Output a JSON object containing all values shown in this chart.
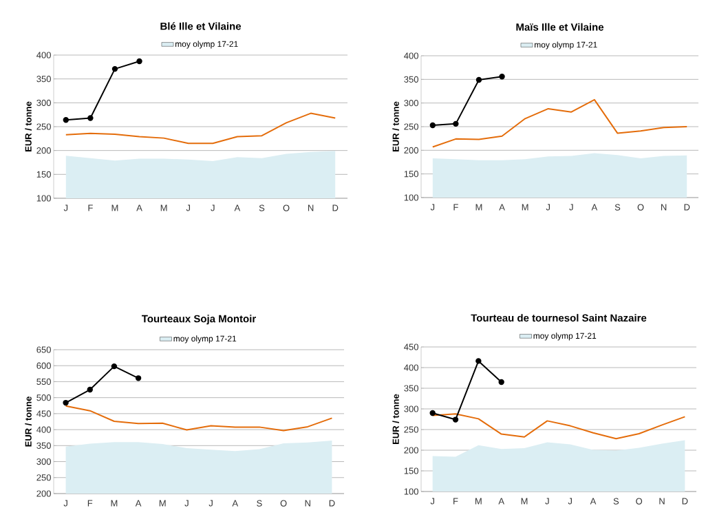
{
  "chart_data": [
    {
      "type": "line",
      "title": "**Blé Ille et Vilaine**",
      "ylabel": "EUR / tonne",
      "categories": [
        "J",
        "F",
        "M",
        "A",
        "M",
        "J",
        "J",
        "A",
        "S",
        "O",
        "N",
        "D"
      ],
      "ylim": [
        100,
        400
      ],
      "yticks": [
        100,
        150,
        200,
        250,
        300,
        350,
        400
      ],
      "grid": "y",
      "legend": "top",
      "series": [
        {
          "name": "moy olymp 17-21",
          "type": "area",
          "color": "#dbeef3",
          "values": [
            189,
            184,
            179,
            183,
            183,
            181,
            178,
            186,
            184,
            193,
            197,
            199
          ]
        },
        {
          "color": "#e46c0a",
          "marker": "none",
          "values": [
            233,
            236,
            234,
            229,
            226,
            215,
            215,
            229,
            231,
            258,
            278,
            268
          ]
        },
        {
          "color": "#000000",
          "marker": "circle",
          "values": [
            264,
            268,
            371,
            387,
            null,
            null,
            null,
            null,
            null,
            null,
            null,
            null
          ]
        }
      ]
    },
    {
      "type": "line",
      "title": "**Maïs  Ille et Vilaine**",
      "ylabel": "EUR / tonne",
      "categories": [
        "J",
        "F",
        "M",
        "A",
        "M",
        "J",
        "J",
        "A",
        "S",
        "O",
        "N",
        "D"
      ],
      "ylim": [
        100,
        400
      ],
      "yticks": [
        100,
        150,
        200,
        250,
        300,
        350,
        400
      ],
      "grid": "y",
      "legend": "top",
      "series": [
        {
          "name": "moy olymp 17-21",
          "type": "area",
          "color": "#dbeef3",
          "values": [
            183,
            181,
            179,
            179,
            181,
            187,
            188,
            194,
            190,
            183,
            188,
            189
          ]
        },
        {
          "color": "#e46c0a",
          "marker": "none",
          "values": [
            207,
            224,
            223,
            230,
            267,
            288,
            281,
            307,
            236,
            241,
            248,
            250
          ]
        },
        {
          "color": "#000000",
          "marker": "circle",
          "values": [
            253,
            256,
            349,
            356,
            null,
            null,
            null,
            null,
            null,
            null,
            null,
            null
          ]
        }
      ]
    },
    {
      "type": "line",
      "title": "**Tourteaux Soja Montoir**",
      "ylabel": "EUR / tonne",
      "categories": [
        "J",
        "F",
        "M",
        "A",
        "M",
        "J",
        "J",
        "A",
        "S",
        "O",
        "N",
        "D"
      ],
      "ylim": [
        200,
        650
      ],
      "yticks": [
        200,
        250,
        300,
        350,
        400,
        450,
        500,
        550,
        600,
        650
      ],
      "grid": "y",
      "legend": "top",
      "series": [
        {
          "name": "moy olymp 17-21",
          "type": "area",
          "color": "#dbeef3",
          "values": [
            347,
            356,
            361,
            361,
            355,
            342,
            337,
            333,
            339,
            357,
            360,
            366
          ]
        },
        {
          "color": "#e46c0a",
          "marker": "none",
          "values": [
            474,
            459,
            426,
            419,
            420,
            399,
            412,
            408,
            408,
            397,
            409,
            436
          ]
        },
        {
          "color": "#000000",
          "marker": "circle",
          "values": [
            484,
            525,
            598,
            561,
            null,
            null,
            null,
            null,
            null,
            null,
            null,
            null
          ]
        }
      ]
    },
    {
      "type": "line",
      "title": "**Tourteau de tournesol Saint Nazaire**",
      "ylabel": "EUR / tonne",
      "categories": [
        "J",
        "F",
        "M",
        "A",
        "M",
        "J",
        "J",
        "A",
        "S",
        "O",
        "N",
        "D"
      ],
      "ylim": [
        100,
        450
      ],
      "yticks": [
        100,
        150,
        200,
        250,
        300,
        350,
        400,
        450
      ],
      "grid": "y",
      "legend": "top",
      "series": [
        {
          "name": "moy olymp 17-21",
          "type": "area",
          "color": "#dbeef3",
          "values": [
            186,
            184,
            212,
            203,
            205,
            219,
            214,
            201,
            199,
            206,
            216,
            224
          ]
        },
        {
          "color": "#e46c0a",
          "marker": "none",
          "values": [
            284,
            288,
            276,
            239,
            232,
            271,
            259,
            242,
            228,
            240,
            261,
            281
          ]
        },
        {
          "color": "#000000",
          "marker": "circle",
          "values": [
            290,
            274,
            416,
            365,
            null,
            null,
            null,
            null,
            null,
            null,
            null,
            null
          ]
        }
      ]
    }
  ]
}
